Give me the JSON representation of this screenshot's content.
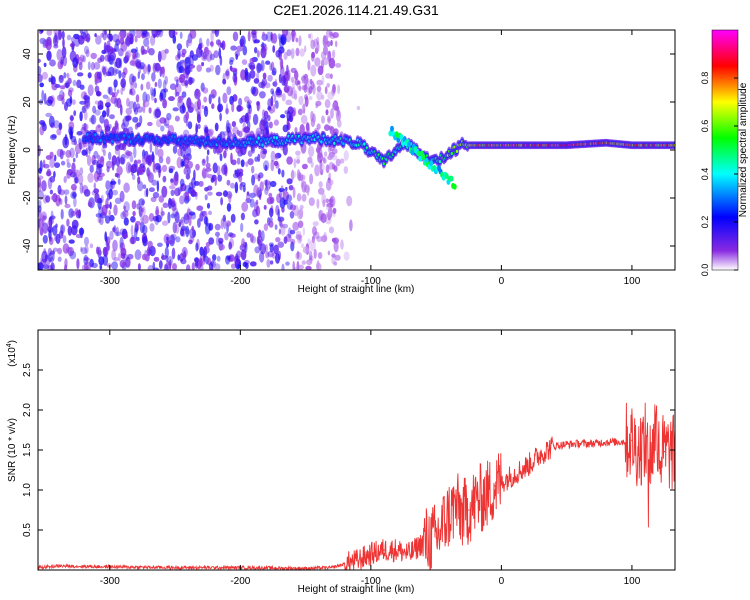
{
  "figure": {
    "title": "C2E1.2026.114.21.49.G31"
  },
  "chart_data": [
    {
      "type": "heatmap",
      "title": "C2E1.2026.114.21.49.G31",
      "xlabel": "Height of straight line (km)",
      "ylabel": "Frequency (Hz)",
      "xlim": [
        -355,
        133
      ],
      "ylim": [
        -50,
        50
      ],
      "xticks": [
        -300,
        -200,
        -100,
        0,
        100
      ],
      "yticks": [
        -40,
        -20,
        0,
        20,
        40
      ],
      "xtick_labels": [
        "-300",
        "-200",
        "-100",
        "0",
        "100"
      ],
      "ytick_labels": [
        "-40",
        "-20",
        "0",
        "20",
        "40"
      ],
      "colorbar": {
        "label": "Normalized spectral amplitude",
        "range": [
          0,
          1
        ],
        "ticks": [
          0.0,
          0.2,
          0.4,
          0.6,
          0.8
        ],
        "tick_labels": [
          "0.0",
          "0.2",
          "0.4",
          "0.6",
          "0.8"
        ],
        "colors": [
          "#ffffff",
          "#8a2be2",
          "#0000ff",
          "#00ffff",
          "#00ff00",
          "#ffff00",
          "#ff0000",
          "#ff00ff"
        ]
      },
      "ridge": [
        {
          "x": -300,
          "freq": 5,
          "amp": 0.3
        },
        {
          "x": -250,
          "freq": 4,
          "amp": 0.3
        },
        {
          "x": -200,
          "freq": 3,
          "amp": 0.35
        },
        {
          "x": -140,
          "freq": 5,
          "amp": 0.4
        },
        {
          "x": -110,
          "freq": 3,
          "amp": 0.45
        },
        {
          "x": -90,
          "freq": -5,
          "amp": 0.5
        },
        {
          "x": -75,
          "freq": 3,
          "amp": 0.5
        },
        {
          "x": -50,
          "freq": -5,
          "amp": 0.5
        },
        {
          "x": -30,
          "freq": 2,
          "amp": 0.7
        },
        {
          "x": 0,
          "freq": 2,
          "amp": 0.85
        },
        {
          "x": 50,
          "freq": 2,
          "amp": 0.9
        },
        {
          "x": 80,
          "freq": 3,
          "amp": 0.85
        },
        {
          "x": 100,
          "freq": 2,
          "amp": 0.8
        },
        {
          "x": 133,
          "freq": 2,
          "amp": 0.8
        }
      ],
      "noise_region_x": [
        -355,
        -125
      ]
    },
    {
      "type": "line",
      "title": "",
      "xlabel": "Height of straight line (km)",
      "ylabel": "SNR (10 * v/v)",
      "y_multiplier_label": "(x10",
      "y_multiplier_exp": "4",
      "y_multiplier_close": ")",
      "xlim": [
        -355,
        133
      ],
      "ylim": [
        0,
        3.0
      ],
      "xticks": [
        -300,
        -200,
        -100,
        0,
        100
      ],
      "yticks": [
        0.5,
        1.0,
        1.5,
        2.0,
        2.5
      ],
      "xtick_labels": [
        "-300",
        "-200",
        "-100",
        "0",
        "100"
      ],
      "ytick_labels": [
        "0.5",
        "1.0",
        "1.5",
        "2.0",
        "2.5"
      ],
      "series": [
        {
          "name": "SNR",
          "color": "#ee3333",
          "x": [
            -355,
            -340,
            -300,
            -250,
            -200,
            -150,
            -130,
            -110,
            -100,
            -90,
            -80,
            -70,
            -60,
            -50,
            -45,
            -40,
            -35,
            -30,
            -25,
            -20,
            -15,
            -10,
            -5,
            0,
            10,
            20,
            30,
            40,
            50,
            60,
            70,
            80,
            90,
            100,
            105,
            110,
            115,
            118,
            120,
            125,
            133
          ],
          "y": [
            0.03,
            0.05,
            0.04,
            0.03,
            0.03,
            0.02,
            0.03,
            0.12,
            0.2,
            0.25,
            0.25,
            0.2,
            0.35,
            0.4,
            0.55,
            0.7,
            0.8,
            0.7,
            0.75,
            0.85,
            0.9,
            0.95,
            1.05,
            1.1,
            1.2,
            1.3,
            1.45,
            1.55,
            1.57,
            1.58,
            1.58,
            1.6,
            1.6,
            1.62,
            1.5,
            1.6,
            1.4,
            1.8,
            1.45,
            1.48,
            1.45
          ]
        }
      ]
    }
  ]
}
